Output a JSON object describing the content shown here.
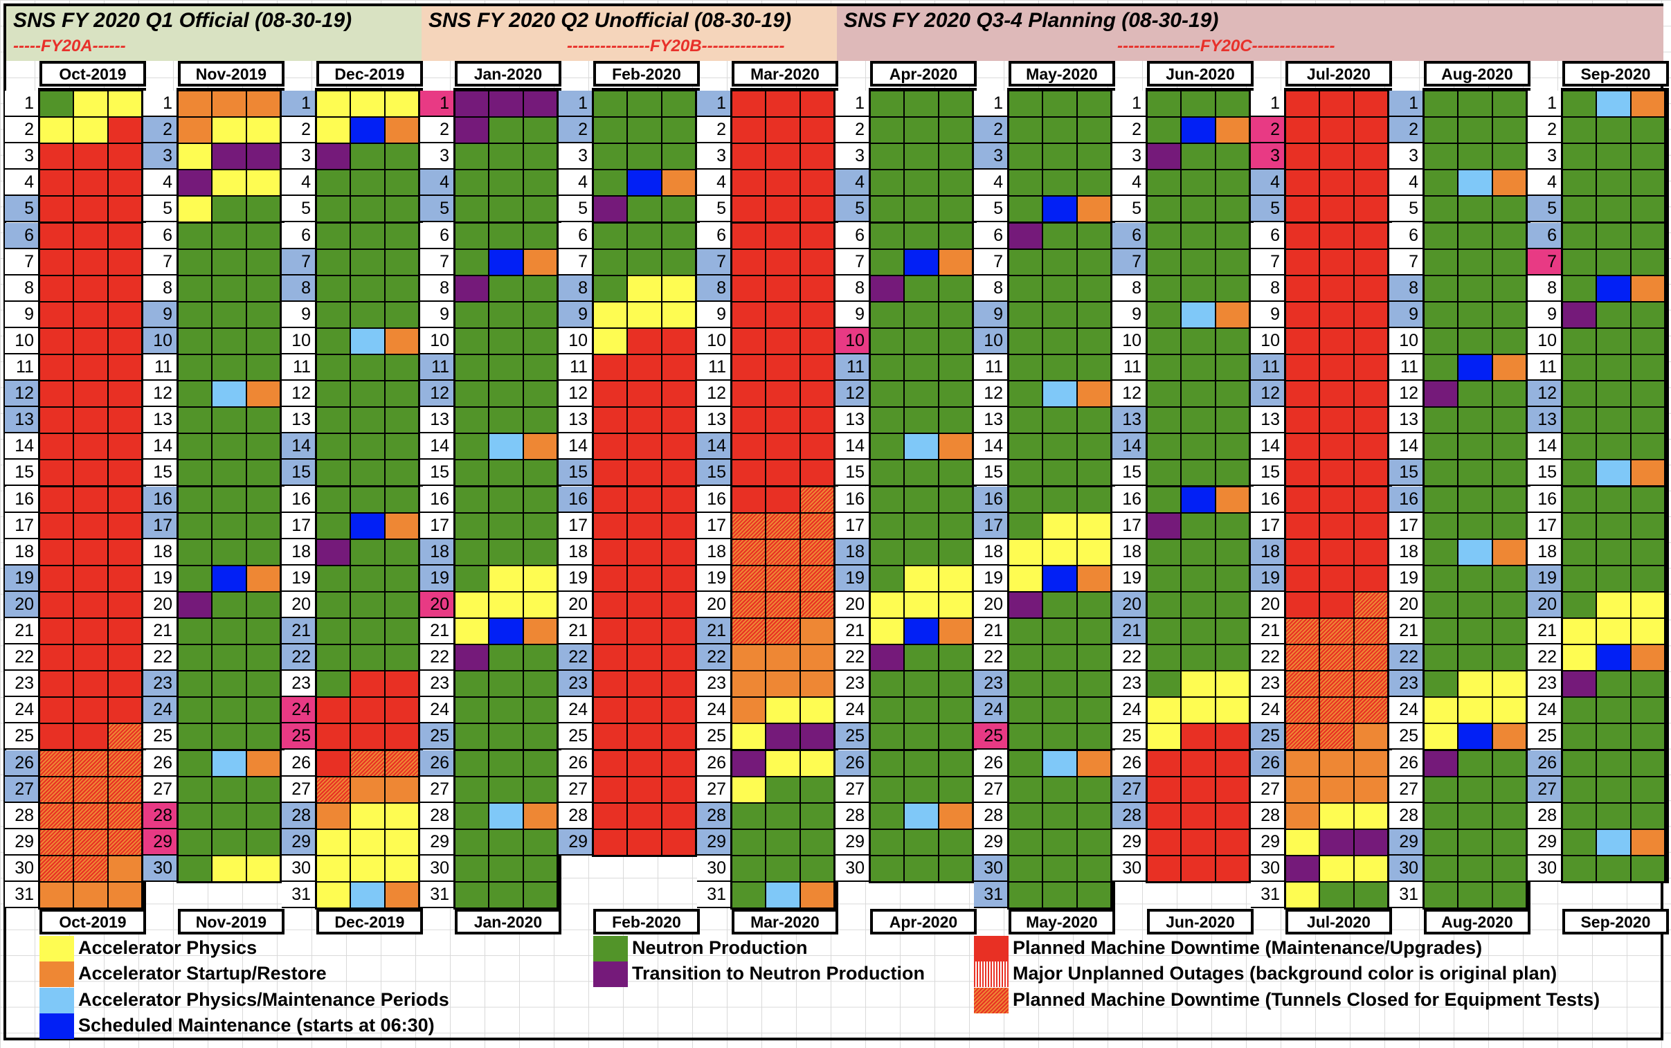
{
  "header": {
    "sections": [
      {
        "title": "SNS FY 2020 Q1 Official (08-30-19)",
        "code": "-----FY20A------",
        "color": "#d9e2c2"
      },
      {
        "title": "SNS FY 2020 Q2 Unofficial (08-30-19)",
        "code": "---------------FY20B---------------",
        "color": "#f5d5bb"
      },
      {
        "title": "SNS FY 2020 Q3-4 Planning (08-30-19)",
        "code": "---------------FY20C---------------",
        "color": "#deb9b9"
      }
    ]
  },
  "legend_codes": {
    "G": "Neutron Production",
    "Y": "Accelerator Physics",
    "O": "Accelerator Startup/Restore",
    "L": "Accelerator Physics/Maintenance Periods",
    "B": "Scheduled Maintenance (starts at 06:30)",
    "P": "Transition to Neutron Production",
    "R": "Planned Machine Downtime (Maintenance/Upgrades)",
    "U": "Major Unplanned Outages (background color is original plan)",
    "H": "Planned Machine Downtime (Tunnels Closed for Equipment Tests)"
  },
  "day_highlight_codes": {
    "w": "weekday",
    "b": "weekend",
    "p": "holiday"
  },
  "legend": {
    "col1": [
      {
        "code": "Y",
        "label": "Accelerator Physics"
      },
      {
        "code": "O",
        "label": "Accelerator Startup/Restore"
      },
      {
        "code": "L",
        "label": "Accelerator Physics/Maintenance Periods"
      },
      {
        "code": "B",
        "label": "Scheduled Maintenance (starts at 06:30)"
      }
    ],
    "col2": [
      {
        "code": "G",
        "label": "Neutron Production"
      },
      {
        "code": "P",
        "label": "Transition to Neutron Production"
      }
    ],
    "col3": [
      {
        "code": "R",
        "label": "Planned Machine Downtime (Maintenance/Upgrades)"
      },
      {
        "code": "U",
        "label": "Major Unplanned Outages (background color is original plan)"
      },
      {
        "code": "H",
        "label": "Planned Machine Downtime (Tunnels Closed for Equipment Tests)"
      }
    ]
  },
  "months": [
    {
      "label": "Oct-2019",
      "days": "wwwwbbwwwwwbbwwwwwbbwwwwwbbwwww",
      "cells": [
        "GYY",
        "YYR",
        "RRR",
        "RRR",
        "RRR",
        "RRR",
        "RRR",
        "RRR",
        "RRR",
        "RRR",
        "RRR",
        "RRR",
        "RRR",
        "RRR",
        "RRR",
        "RRR",
        "RRR",
        "RRR",
        "RRR",
        "RRR",
        "RRR",
        "RRR",
        "RRR",
        "RRR",
        "RRH",
        "HHH",
        "HHH",
        "HHH",
        "HHH",
        "HHO",
        "OOO"
      ]
    },
    {
      "label": "Nov-2019",
      "days": "wbbwwwwwbbwwwwwbbwwwwwbbwwwppb",
      "cells": [
        "OOO",
        "OYY",
        "YPP",
        "PYY",
        "YGG",
        "GGG",
        "GGG",
        "GGG",
        "GGG",
        "GGG",
        "GGG",
        "GLO",
        "GGG",
        "GGG",
        "GGG",
        "GGG",
        "GGG",
        "GGG",
        "GBO",
        "PGG",
        "GGG",
        "GGG",
        "GGG",
        "GGG",
        "GGG",
        "GLO",
        "GGG",
        "GGG",
        "GGG",
        "GYY"
      ]
    },
    {
      "label": "Dec-2019",
      "days": "bwwwwwbbwwwwwbbwwwwwbbwppwwbbww",
      "cells": [
        "YYY",
        "YBO",
        "PGG",
        "GGG",
        "GGG",
        "GGG",
        "GGG",
        "GGG",
        "GGG",
        "GLO",
        "GGG",
        "GGG",
        "GGG",
        "GGG",
        "GGG",
        "GGG",
        "GBO",
        "PGG",
        "GGG",
        "GGG",
        "GGG",
        "GGG",
        "GRR",
        "RRR",
        "RRR",
        "RHH",
        "HOO",
        "OYY",
        "YYY",
        "YYY",
        "YLO"
      ]
    },
    {
      "label": "Jan-2020",
      "days": "pwwbbwwwwwbbwwwwwbbpwwwwbbwwwww",
      "cells": [
        "PPP",
        "PGG",
        "GGG",
        "GGG",
        "GGG",
        "GGG",
        "GBO",
        "PGG",
        "GGG",
        "GGG",
        "GGG",
        "GGG",
        "GGG",
        "GLO",
        "GGG",
        "GGG",
        "GGG",
        "GGG",
        "GYY",
        "YYY",
        "YBO",
        "PGG",
        "GGG",
        "GGG",
        "GGG",
        "GGG",
        "GGG",
        "GLO",
        "GGG",
        "GGG",
        "GGG"
      ]
    },
    {
      "label": "Feb-2020",
      "days": "bbwwwwwbbwwwwwbbwwwwwbbwwwwwb",
      "cells": [
        "GGG",
        "GGG",
        "GGG",
        "GBO",
        "PGG",
        "GGG",
        "GGG",
        "GYY",
        "YYY",
        "YRR",
        "RRR",
        "RRR",
        "RRR",
        "RRR",
        "RRR",
        "RRR",
        "RRR",
        "RRR",
        "RRR",
        "RRR",
        "RRR",
        "RRR",
        "RRR",
        "RRR",
        "RRR",
        "RRR",
        "RRR",
        "RRR",
        "RRR"
      ]
    },
    {
      "label": "Mar-2020",
      "days": "bwwwwwbbwwwwwbbwwwwwbbwwwwwbbww",
      "cells": [
        "RRR",
        "RRR",
        "RRR",
        "RRR",
        "RRR",
        "RRR",
        "RRR",
        "RRR",
        "RRR",
        "RRR",
        "RRR",
        "RRR",
        "RRR",
        "RRR",
        "RRR",
        "RRH",
        "HHH",
        "HHH",
        "HHH",
        "HHH",
        "HHO",
        "OOO",
        "OOO",
        "OYY",
        "YPP",
        "PYY",
        "YGG",
        "GGG",
        "GGG",
        "GGG",
        "GLO"
      ]
    },
    {
      "label": "Apr-2020",
      "days": "wwwbbwwwwpbbwwwwwbbwwwwwbbwwww",
      "cells": [
        "GGG",
        "GGG",
        "GGG",
        "GGG",
        "GGG",
        "GGG",
        "GBO",
        "PGG",
        "GGG",
        "GGG",
        "GGG",
        "GGG",
        "GGG",
        "GLO",
        "GGG",
        "GGG",
        "GGG",
        "GGG",
        "GYY",
        "YYY",
        "YBO",
        "PGG",
        "GGG",
        "GGG",
        "GGG",
        "GGG",
        "GGG",
        "GLO",
        "GGG",
        "GGG"
      ]
    },
    {
      "label": "May-2020",
      "days": "wbbwwwwwbbwwwwwbbwwwwwbbpwwwwbb",
      "cells": [
        "GGG",
        "GGG",
        "GGG",
        "GGG",
        "GBO",
        "PGG",
        "GGG",
        "GGG",
        "GGG",
        "GGG",
        "GGG",
        "GLO",
        "GGG",
        "GGG",
        "GGG",
        "GGG",
        "GYY",
        "YYY",
        "YBO",
        "PGG",
        "GGG",
        "GGG",
        "GGG",
        "GGG",
        "GGG",
        "GLO",
        "GGG",
        "GGG",
        "GGG",
        "GGG",
        "GGG"
      ]
    },
    {
      "label": "Jun-2020",
      "days": "wwwwwbbwwwwwbbwwwwwbbwwwwwbbww",
      "cells": [
        "GGG",
        "GBO",
        "PGG",
        "GGG",
        "GGG",
        "GGG",
        "GGG",
        "GGG",
        "GLO",
        "GGG",
        "GGG",
        "GGG",
        "GGG",
        "GGG",
        "GGG",
        "GBO",
        "PGG",
        "GGG",
        "GGG",
        "GGG",
        "GGG",
        "GGG",
        "GYY",
        "YYY",
        "YRR",
        "RRR",
        "RRR",
        "RRR",
        "RRR",
        "RRR"
      ]
    },
    {
      "label": "Jul-2020",
      "days": "wppbbwwwwwbbwwwwwbbwwwwwbbwwwww",
      "cells": [
        "RRR",
        "RRR",
        "RRR",
        "RRR",
        "RRR",
        "RRR",
        "RRR",
        "RRR",
        "RRR",
        "RRR",
        "RRR",
        "RRR",
        "RRR",
        "RRR",
        "RRR",
        "RRR",
        "RRR",
        "RRR",
        "RRR",
        "RRH",
        "HHH",
        "HHH",
        "HHH",
        "HHH",
        "HHO",
        "OOO",
        "OOO",
        "OYY",
        "YPP",
        "PYY",
        "YGG"
      ]
    },
    {
      "label": "Aug-2020",
      "days": "bbwwwwwbbwwwwwbbwwwwwbbwwwwwbbw",
      "cells": [
        "GGG",
        "GGG",
        "GGG",
        "GLO",
        "GGG",
        "GGG",
        "GGG",
        "GGG",
        "GGG",
        "GGG",
        "GBO",
        "PGG",
        "GGG",
        "GGG",
        "GGG",
        "GGG",
        "GGG",
        "GLO",
        "GGG",
        "GGG",
        "GGG",
        "GGG",
        "GYY",
        "YYY",
        "YBO",
        "PGG",
        "GGG",
        "GGG",
        "GGG",
        "GGG",
        "GGG"
      ]
    },
    {
      "label": "Sep-2020",
      "days": "wwwwbbpwwwwbbwwwwwbbwwwwwbbwww",
      "cells": [
        "GLO",
        "GGG",
        "GGG",
        "GGG",
        "GGG",
        "GGG",
        "GGG",
        "GBO",
        "PGG",
        "GGG",
        "GGG",
        "GGG",
        "GGG",
        "GGG",
        "GLO",
        "GGG",
        "GGG",
        "GGG",
        "GGG",
        "GYY",
        "YYY",
        "YBO",
        "PGG",
        "GGG",
        "GGG",
        "GGG",
        "GGG",
        "GGG",
        "GLO",
        "GGG"
      ]
    }
  ]
}
